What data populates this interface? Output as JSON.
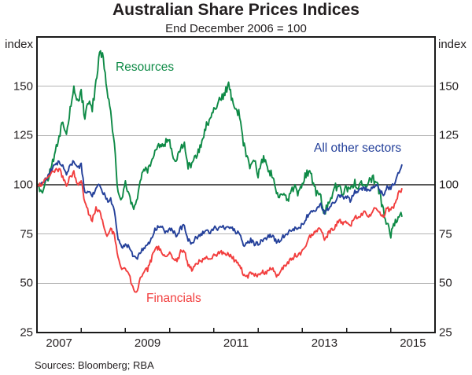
{
  "chart": {
    "title": "Australian Share Prices Indices",
    "subtitle": "End December 2006 = 100"
  },
  "axes": {
    "y_unit": "index",
    "y_ticks": [
      150,
      125,
      100,
      75,
      50,
      25
    ],
    "y_min": 25,
    "y_max": 175,
    "baseline": 100,
    "x_labels": [
      {
        "text": "2007",
        "year": 2007
      },
      {
        "text": "2009",
        "year": 2009
      },
      {
        "text": "2011",
        "year": 2011
      },
      {
        "text": "2013",
        "year": 2013
      },
      {
        "text": "2015",
        "year": 2015
      }
    ],
    "x_first_year": 2007,
    "x_last_year": 2015
  },
  "footer": {
    "sources": "Sources:   Bloomberg; RBA"
  },
  "chart_data": {
    "type": "line",
    "title": "Australian Share Prices Indices",
    "subtitle": "End December 2006 = 100",
    "ylabel": "index",
    "xlabel": "",
    "ylim": [
      25,
      175
    ],
    "x_range": [
      "2006-12",
      "2015-12"
    ],
    "data_start": "2006-12",
    "frequency": "monthly",
    "grid": "horizontal",
    "baseline": 100,
    "legend_position": "inline-labels",
    "colors": {
      "grid": "#b3b3b3",
      "baseline_line": "#595959",
      "frame": "#1a1a1a"
    },
    "series": [
      {
        "name": "Resources",
        "color": "#0e8a46",
        "values": [
          100,
          96,
          100,
          103,
          111,
          117,
          124,
          132,
          124,
          139,
          150,
          143,
          147,
          134,
          142,
          138,
          152,
          168,
          164,
          147,
          136,
          120,
          96,
          94,
          100,
          95,
          89,
          92,
          100,
          108,
          106,
          112,
          118,
          121,
          120,
          122,
          121,
          115,
          112,
          119,
          122,
          110,
          111,
          114,
          117,
          124,
          130,
          134,
          140,
          141,
          144,
          147,
          151,
          143,
          138,
          136,
          121,
          113,
          108,
          112,
          105,
          112,
          114,
          107,
          105,
          95,
          93,
          94,
          92,
          97,
          98,
          96,
          102,
          105,
          107,
          101,
          95,
          93,
          85,
          90,
          95,
          99,
          99,
          96,
          99,
          97,
          101,
          100,
          100,
          100,
          101,
          103,
          102,
          95,
          86,
          80,
          75,
          80,
          84,
          84
        ]
      },
      {
        "name": "All other sectors",
        "color": "#24409a",
        "values": [
          100,
          100,
          102,
          104,
          108,
          110,
          112,
          110,
          105,
          110,
          112,
          108,
          110,
          96,
          97,
          94,
          98,
          100,
          96,
          92,
          93,
          86,
          73,
          68,
          70,
          68,
          64,
          62,
          66,
          68,
          69,
          73,
          77,
          79,
          78,
          76,
          78,
          76,
          74,
          78,
          79,
          72,
          70,
          73,
          74,
          76,
          77,
          76,
          78,
          78,
          79,
          78,
          79,
          78,
          76,
          75,
          69,
          70,
          72,
          70,
          70,
          72,
          73,
          74,
          74,
          71,
          72,
          74,
          75,
          77,
          78,
          78,
          80,
          83,
          86,
          87,
          88,
          90,
          85,
          88,
          90,
          92,
          95,
          93,
          94,
          92,
          96,
          97,
          98,
          98,
          97,
          99,
          100,
          97,
          95,
          99,
          98,
          101,
          106,
          110
        ]
      },
      {
        "name": "Financials",
        "color": "#f23e3e",
        "values": [
          100,
          100,
          102,
          103,
          106,
          107,
          108,
          104,
          100,
          104,
          106,
          100,
          102,
          91,
          86,
          82,
          88,
          87,
          80,
          74,
          78,
          74,
          63,
          56,
          58,
          54,
          48,
          45,
          52,
          56,
          57,
          62,
          67,
          68,
          66,
          63,
          65,
          63,
          61,
          66,
          66,
          59,
          57,
          60,
          61,
          62,
          64,
          62,
          64,
          65,
          66,
          64,
          65,
          63,
          61,
          60,
          54,
          53,
          56,
          54,
          54,
          56,
          55,
          57,
          58,
          54,
          56,
          58,
          60,
          62,
          64,
          64,
          66,
          70,
          74,
          75,
          76,
          78,
          72,
          75,
          77,
          79,
          82,
          80,
          81,
          79,
          83,
          84,
          85,
          86,
          83,
          87,
          89,
          86,
          84,
          88,
          87,
          90,
          95,
          98
        ]
      }
    ]
  }
}
